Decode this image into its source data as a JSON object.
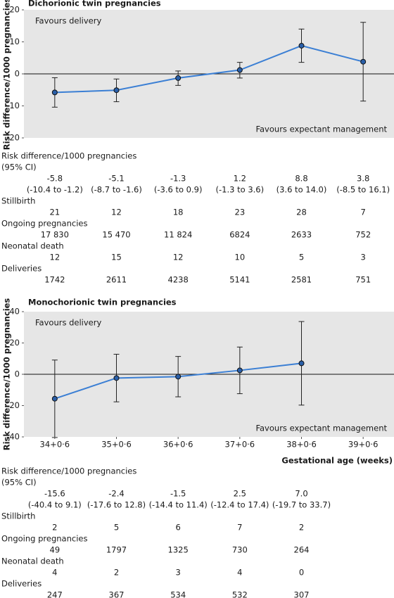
{
  "chart_data": [
    {
      "type": "line",
      "title": "Dichorionic twin pregnancies",
      "ylabel": "Risk difference/1000 pregnancies",
      "ylim": [
        -20,
        20
      ],
      "yticks": [
        -20,
        -10,
        0,
        10,
        20
      ],
      "annotations": [
        "Favours delivery",
        "Favours expectant management"
      ],
      "series": [
        {
          "name": "Risk difference",
          "color": "#3b7fd4",
          "values": [
            -5.8,
            -5.1,
            -1.3,
            1.2,
            8.8,
            3.8
          ],
          "lower": [
            -10.4,
            -8.7,
            -3.6,
            -1.3,
            3.6,
            -8.5
          ],
          "upper": [
            -1.2,
            -1.6,
            0.9,
            3.6,
            14.0,
            16.1
          ],
          "value_labels": [
            "-5.8",
            "-5.1",
            "-1.3",
            "1.2",
            "8.8",
            "3.8"
          ],
          "ci_labels": [
            "(-10.4 to -1.2)",
            "(-8.7 to -1.6)",
            "(-3.6 to 0.9)",
            "(-1.3 to 3.6)",
            "(3.6 to 14.0)",
            "(-8.5 to 16.1)"
          ]
        }
      ],
      "table": {
        "rd_label": "Risk difference/1000 pregnancies",
        "ci_label": "(95% CI)",
        "rows": [
          {
            "label": "Stillbirth",
            "values": [
              21,
              12,
              18,
              23,
              28,
              7
            ]
          },
          {
            "label": "Ongoing pregnancies",
            "values": [
              "17 830",
              "15 470",
              "11 824",
              6824,
              2633,
              752
            ]
          },
          {
            "label": "Neonatal death",
            "values": [
              12,
              15,
              12,
              10,
              5,
              3
            ]
          },
          {
            "label": "Deliveries",
            "values": [
              1742,
              2611,
              4238,
              5141,
              2581,
              751
            ]
          }
        ]
      }
    },
    {
      "type": "line",
      "title": "Monochorionic twin pregnancies",
      "ylabel": "Risk difference/1000 pregnancies",
      "xlabel": "Gestational age (weeks)",
      "categories": [
        "34+0·6",
        "35+0·6",
        "36+0·6",
        "37+0·6",
        "38+0·6",
        "39+0·6"
      ],
      "ylim": [
        -40,
        40
      ],
      "yticks": [
        -40,
        -20,
        0,
        20,
        40
      ],
      "annotations": [
        "Favours delivery",
        "Favours expectant management"
      ],
      "series": [
        {
          "name": "Risk difference",
          "color": "#3b7fd4",
          "values": [
            -15.6,
            -2.4,
            -1.5,
            2.5,
            7.0,
            null
          ],
          "lower": [
            -40.4,
            -17.6,
            -14.4,
            -12.4,
            -19.7,
            null
          ],
          "upper": [
            9.1,
            12.8,
            11.4,
            17.4,
            33.7,
            null
          ],
          "value_labels": [
            "-15.6",
            "-2.4",
            "-1.5",
            "2.5",
            "7.0",
            null
          ],
          "ci_labels": [
            "(-40.4 to 9.1)",
            "(-17.6 to 12.8)",
            "(-14.4 to 11.4)",
            "(-12.4 to 17.4)",
            "(-19.7 to 33.7)",
            null
          ]
        }
      ],
      "table": {
        "rd_label": "Risk difference/1000 pregnancies",
        "ci_label": "(95% CI)",
        "rows": [
          {
            "label": "Stillbirth",
            "values": [
              2,
              5,
              6,
              7,
              2,
              null
            ]
          },
          {
            "label": "Ongoing pregnancies",
            "values": [
              49,
              1797,
              1325,
              730,
              264,
              null
            ]
          },
          {
            "label": "Neonatal death",
            "values": [
              4,
              2,
              3,
              4,
              0,
              null
            ]
          },
          {
            "label": "Deliveries",
            "values": [
              247,
              367,
              534,
              532,
              307,
              null
            ]
          }
        ]
      }
    }
  ]
}
